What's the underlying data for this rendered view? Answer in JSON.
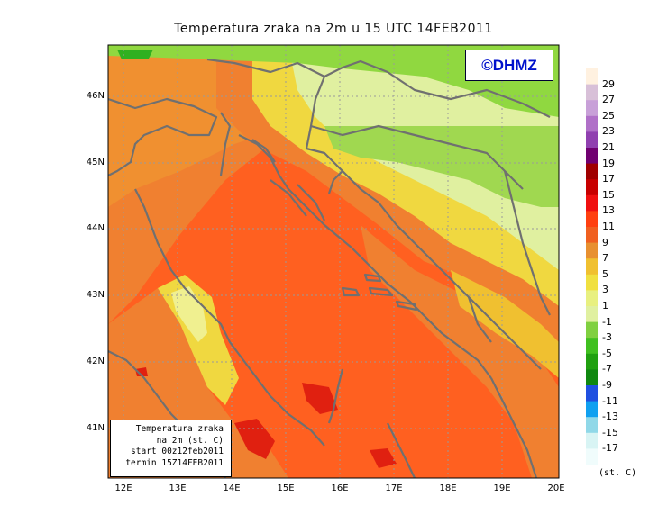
{
  "title": "Temperatura zraka na 2m u 15 UTC 14FEB2011",
  "credit": "©DHMZ",
  "info_box": [
    "Temperatura zraka",
    "na 2m (st. C)",
    "start 00z12feb2011",
    "termin 15Z14FEB2011"
  ],
  "lat_labels": [
    "46N",
    "45N",
    "44N",
    "43N",
    "42N",
    "41N"
  ],
  "lon_labels": [
    "12E",
    "13E",
    "14E",
    "15E",
    "16E",
    "17E",
    "18E",
    "19E",
    "20E"
  ],
  "colorbar": {
    "labels": [
      "29",
      "27",
      "25",
      "23",
      "21",
      "19",
      "17",
      "15",
      "13",
      "11",
      "9",
      "7",
      "5",
      "3",
      "1",
      "-1",
      "-3",
      "-5",
      "-7",
      "-9",
      "-11",
      "-13",
      "-15",
      "-17"
    ],
    "colors": [
      "#fff1e0",
      "#d8c0d8",
      "#c8a0d8",
      "#b070c8",
      "#9040b0",
      "#700070",
      "#a00000",
      "#c80000",
      "#f01010",
      "#ff4010",
      "#f06020",
      "#e89030",
      "#f0c030",
      "#f0e040",
      "#e8f080",
      "#e0f0a0",
      "#80d040",
      "#40c020",
      "#20a010",
      "#108810",
      "#2050e0",
      "#10a0f0",
      "#90d8e8",
      "#d8f4f4",
      "#f0fcfc"
    ],
    "unit": "(st. C)"
  },
  "colors": {
    "sea_warm": "#ff6020",
    "coast_warm": "#f08030",
    "inland_mild": "#f0d840",
    "inland_cool": "#e0f0a0",
    "north_cold": "#90d840",
    "coastline": "#707070",
    "gridline": "#9a9a9a"
  }
}
